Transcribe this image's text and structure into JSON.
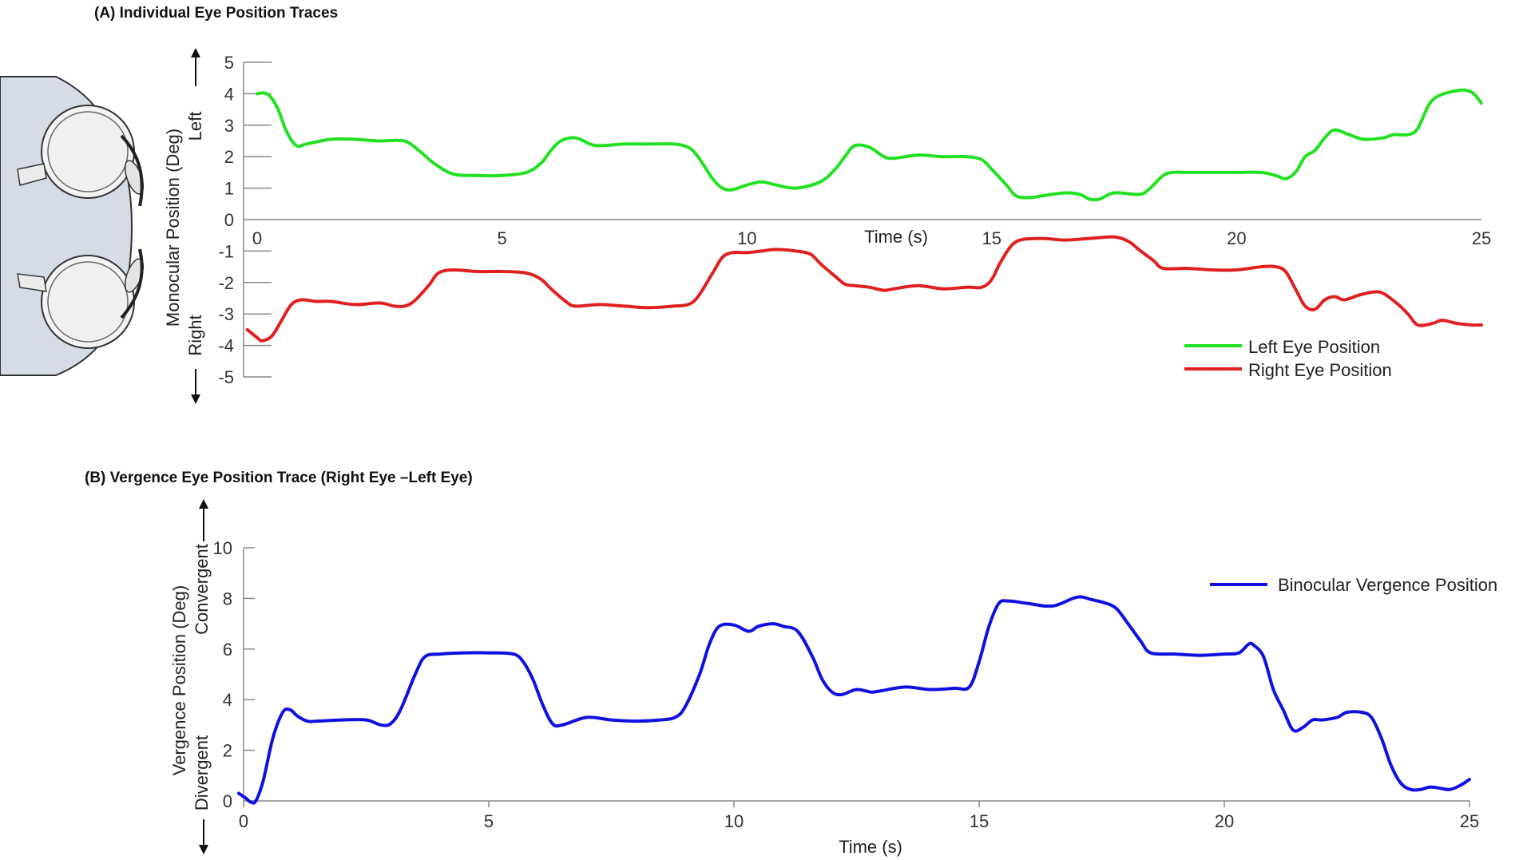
{
  "chart_data": [
    {
      "type": "line",
      "title": "(A) Individual Eye Position  Traces",
      "xlabel": "Time (s)",
      "ylabel": "Monocular Position (Deg)",
      "ylabel_positive": "Left",
      "ylabel_negative": "Right",
      "xlim": [
        0,
        25
      ],
      "ylim": [
        -5,
        5
      ],
      "xticks": [
        "0",
        "5",
        "10",
        "15",
        "20",
        "25"
      ],
      "yticks": [
        "5",
        "4",
        "3",
        "2",
        "1",
        "0",
        "-1",
        "-2",
        "-3",
        "-4",
        "-5"
      ],
      "grid": false,
      "legend_position": "bottom-right",
      "illustration": "eyes-top-view",
      "series": [
        {
          "name": "Left Eye Position",
          "color": "#22e022",
          "x": [
            0,
            0.2,
            0.4,
            0.6,
            0.8,
            1.0,
            1.5,
            2.0,
            2.5,
            3.0,
            3.3,
            3.6,
            4.0,
            4.5,
            5.0,
            5.5,
            5.8,
            6.0,
            6.2,
            6.5,
            6.8,
            7.0,
            7.5,
            8.0,
            8.5,
            8.8,
            9.0,
            9.3,
            9.5,
            9.7,
            10.0,
            10.3,
            10.6,
            11.0,
            11.5,
            11.8,
            12.0,
            12.2,
            12.5,
            12.8,
            13.0,
            13.5,
            14.0,
            14.5,
            14.8,
            15.0,
            15.3,
            15.5,
            15.8,
            16.0,
            16.5,
            16.8,
            17.0,
            17.2,
            17.5,
            18.0,
            18.2,
            18.5,
            18.7,
            19.0,
            19.5,
            20.0,
            20.5,
            20.8,
            21.0,
            21.2,
            21.4,
            21.6,
            21.8,
            22.0,
            22.3,
            22.6,
            23.0,
            23.2,
            23.5,
            23.7,
            24.0,
            24.5,
            24.8,
            25.0
          ],
          "y": [
            4.0,
            4.0,
            3.6,
            2.8,
            2.35,
            2.4,
            2.55,
            2.55,
            2.5,
            2.5,
            2.2,
            1.8,
            1.45,
            1.4,
            1.4,
            1.5,
            1.8,
            2.2,
            2.5,
            2.6,
            2.4,
            2.35,
            2.4,
            2.4,
            2.4,
            2.3,
            2.0,
            1.3,
            1.0,
            0.95,
            1.1,
            1.2,
            1.1,
            1.0,
            1.2,
            1.6,
            2.0,
            2.35,
            2.3,
            2.0,
            1.95,
            2.05,
            2.0,
            2.0,
            1.9,
            1.6,
            1.1,
            0.75,
            0.7,
            0.75,
            0.85,
            0.8,
            0.65,
            0.65,
            0.85,
            0.8,
            0.95,
            1.4,
            1.5,
            1.5,
            1.5,
            1.5,
            1.5,
            1.4,
            1.3,
            1.5,
            2.0,
            2.2,
            2.6,
            2.85,
            2.7,
            2.55,
            2.6,
            2.7,
            2.7,
            2.9,
            3.8,
            4.1,
            4.05,
            3.7
          ]
        },
        {
          "name": "Right Eye Position",
          "color": "#e02020",
          "x": [
            -0.2,
            0.0,
            0.1,
            0.3,
            0.5,
            0.7,
            0.9,
            1.2,
            1.5,
            2.0,
            2.5,
            2.8,
            3.0,
            3.2,
            3.5,
            3.7,
            4.0,
            4.5,
            5.0,
            5.5,
            5.8,
            6.0,
            6.3,
            6.5,
            7.0,
            7.5,
            8.0,
            8.5,
            8.8,
            9.0,
            9.3,
            9.5,
            9.7,
            10.0,
            10.3,
            10.6,
            11.0,
            11.3,
            11.5,
            11.8,
            12.0,
            12.2,
            12.5,
            12.8,
            13.0,
            13.5,
            14.0,
            14.5,
            14.8,
            15.0,
            15.2,
            15.5,
            16.0,
            16.5,
            17.0,
            17.5,
            17.8,
            18.0,
            18.3,
            18.5,
            19.0,
            19.5,
            20.0,
            20.5,
            20.8,
            21.0,
            21.2,
            21.4,
            21.6,
            21.8,
            22.0,
            22.2,
            22.5,
            22.8,
            23.0,
            23.3,
            23.5,
            23.7,
            24.0,
            24.2,
            24.5,
            24.8,
            25.0
          ],
          "y": [
            -3.5,
            -3.75,
            -3.85,
            -3.7,
            -3.2,
            -2.7,
            -2.55,
            -2.6,
            -2.6,
            -2.7,
            -2.65,
            -2.75,
            -2.75,
            -2.6,
            -2.1,
            -1.7,
            -1.6,
            -1.65,
            -1.65,
            -1.7,
            -1.9,
            -2.2,
            -2.6,
            -2.75,
            -2.7,
            -2.75,
            -2.8,
            -2.75,
            -2.7,
            -2.45,
            -1.7,
            -1.2,
            -1.05,
            -1.05,
            -1.0,
            -0.95,
            -1.0,
            -1.1,
            -1.4,
            -1.8,
            -2.05,
            -2.1,
            -2.15,
            -2.25,
            -2.2,
            -2.1,
            -2.2,
            -2.15,
            -2.15,
            -1.9,
            -1.3,
            -0.7,
            -0.6,
            -0.65,
            -0.6,
            -0.55,
            -0.7,
            -0.95,
            -1.3,
            -1.55,
            -1.55,
            -1.6,
            -1.6,
            -1.5,
            -1.5,
            -1.65,
            -2.2,
            -2.75,
            -2.85,
            -2.55,
            -2.45,
            -2.55,
            -2.4,
            -2.3,
            -2.35,
            -2.7,
            -3.0,
            -3.35,
            -3.3,
            -3.2,
            -3.3,
            -3.35,
            -3.35
          ]
        }
      ]
    },
    {
      "type": "line",
      "title": "(B) Vergence Eye Position Trace (Right Eye –Left Eye)",
      "xlabel": "Time (s)",
      "ylabel": "Vergence Position (Deg)",
      "ylabel_positive": "Convergent",
      "ylabel_negative": "Divergent",
      "xlim": [
        0,
        25
      ],
      "ylim": [
        0,
        10
      ],
      "xticks": [
        "0",
        "5",
        "10",
        "15",
        "20",
        "25"
      ],
      "yticks": [
        "10",
        "8",
        "6",
        "4",
        "2",
        "0"
      ],
      "grid": false,
      "legend_position": "top-right",
      "series": [
        {
          "name": "Binocular Vergence Position",
          "color": "#1010e0",
          "x": [
            -0.1,
            0.05,
            0.15,
            0.25,
            0.4,
            0.6,
            0.8,
            0.95,
            1.1,
            1.3,
            1.5,
            2.0,
            2.5,
            2.8,
            3.0,
            3.2,
            3.5,
            3.7,
            4.0,
            4.5,
            5.0,
            5.5,
            5.7,
            5.9,
            6.1,
            6.3,
            6.5,
            7.0,
            7.5,
            8.0,
            8.5,
            8.8,
            9.0,
            9.3,
            9.5,
            9.7,
            10.0,
            10.3,
            10.5,
            10.8,
            11.0,
            11.3,
            11.6,
            11.8,
            12.0,
            12.2,
            12.5,
            12.8,
            13.0,
            13.5,
            14.0,
            14.5,
            14.8,
            15.0,
            15.2,
            15.4,
            15.6,
            16.0,
            16.5,
            17.0,
            17.3,
            17.6,
            17.8,
            18.0,
            18.3,
            18.5,
            19.0,
            19.5,
            20.0,
            20.3,
            20.5,
            20.6,
            20.8,
            21.0,
            21.2,
            21.4,
            21.6,
            21.8,
            22.0,
            22.3,
            22.5,
            22.8,
            23.0,
            23.2,
            23.4,
            23.6,
            23.8,
            24.0,
            24.2,
            24.4,
            24.6,
            24.8,
            25.0
          ],
          "y": [
            0.3,
            0.1,
            -0.05,
            0.0,
            0.8,
            2.5,
            3.5,
            3.6,
            3.35,
            3.15,
            3.15,
            3.2,
            3.2,
            3.0,
            3.05,
            3.6,
            5.0,
            5.7,
            5.8,
            5.85,
            5.85,
            5.8,
            5.5,
            4.8,
            3.8,
            3.05,
            3.0,
            3.3,
            3.2,
            3.15,
            3.2,
            3.3,
            3.7,
            5.0,
            6.2,
            6.9,
            6.95,
            6.7,
            6.9,
            7.0,
            6.9,
            6.7,
            5.7,
            4.8,
            4.3,
            4.2,
            4.4,
            4.3,
            4.35,
            4.5,
            4.4,
            4.45,
            4.5,
            5.5,
            6.9,
            7.8,
            7.9,
            7.8,
            7.7,
            8.05,
            7.95,
            7.8,
            7.6,
            7.1,
            6.3,
            5.85,
            5.8,
            5.75,
            5.8,
            5.85,
            6.2,
            6.15,
            5.7,
            4.4,
            3.6,
            2.8,
            2.9,
            3.2,
            3.2,
            3.3,
            3.5,
            3.5,
            3.3,
            2.5,
            1.4,
            0.7,
            0.45,
            0.45,
            0.55,
            0.5,
            0.45,
            0.6,
            0.85
          ]
        }
      ]
    }
  ]
}
